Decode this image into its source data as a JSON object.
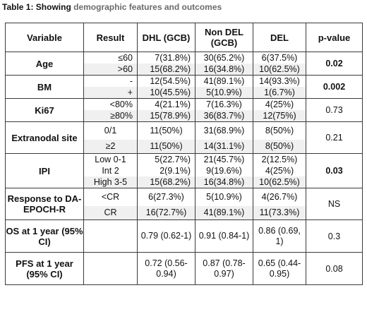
{
  "caption": {
    "lead": "Table 1: Showing",
    "rest": "demographic features and outcomes"
  },
  "headers": {
    "variable": "Variable",
    "result": "Result",
    "dhl": "DHL (GCB)",
    "nondel": "Non DEL (GCB)",
    "del": "DEL",
    "pvalue": "p-value"
  },
  "rows": {
    "age": {
      "label": "Age",
      "results": [
        "≤60",
        ">60"
      ],
      "dhl": [
        "7(31.8%)",
        "15(68.2%)"
      ],
      "nondel": [
        "30(65.2%)",
        "16(34.8%)"
      ],
      "del": [
        "6(37.5%)",
        "10(62.5%)"
      ],
      "p": "0.02"
    },
    "bm": {
      "label": "BM",
      "results": [
        "-",
        "+"
      ],
      "dhl": [
        "12(54.5%)",
        "10(45.5%)"
      ],
      "nondel": [
        "41(89.1%)",
        "5(10.9%)"
      ],
      "del": [
        "14(93.3%)",
        "1(6.7%)"
      ],
      "p": "0.002"
    },
    "ki67": {
      "label": "Ki67",
      "results": [
        "<80%",
        "≥80%"
      ],
      "dhl": [
        "4(21.1%)",
        "15(78.9%)"
      ],
      "nondel": [
        "7(16.3%)",
        "36(83.7%)"
      ],
      "del": [
        "4(25%)",
        "12(75%)"
      ],
      "p": "0.73"
    },
    "extranodal": {
      "label": "Extranodal site",
      "results": [
        "0/1",
        "≥2"
      ],
      "dhl": [
        "11(50%)",
        "11(50%)"
      ],
      "nondel": [
        "31(68.9%)",
        "14(31.1%)"
      ],
      "del": [
        "8(50%)",
        "8(50%)"
      ],
      "p": "0.21"
    },
    "ipi": {
      "label": "IPI",
      "results": [
        "Low 0-1",
        "Int 2",
        "High 3-5"
      ],
      "dhl": [
        "5(22.7%)",
        "2(9.1%)",
        "15(68.2%)"
      ],
      "nondel": [
        "21(45.7%)",
        "9(19.6%)",
        "16(34.8%)"
      ],
      "del": [
        "2(12.5%)",
        "4(25%)",
        "10(62.5%)"
      ],
      "p": "0.03"
    },
    "response": {
      "label": "Response to DA-EPOCH-R",
      "results": [
        "<CR",
        "CR"
      ],
      "dhl": [
        "6(27.3%)",
        "16(72.7%)"
      ],
      "nondel": [
        "5(10.9%)",
        "41(89.1%)"
      ],
      "del": [
        "4(26.7%)",
        "11(73.3%)"
      ],
      "p": "NS"
    },
    "os": {
      "label": "OS at 1 year (95% CI)",
      "dhl": "0.79 (0.62-1)",
      "nondel": "0.91 (0.84-1)",
      "del": "0.86 (0.69, 1)",
      "p": "0.3"
    },
    "pfs": {
      "label": "PFS at 1 year (95% CI)",
      "dhl": "0.72 (0.56-0.94)",
      "nondel": "0.87 (0.78-0.97)",
      "del": "0.65 (0.44-0.95)",
      "p": "0.08"
    }
  }
}
